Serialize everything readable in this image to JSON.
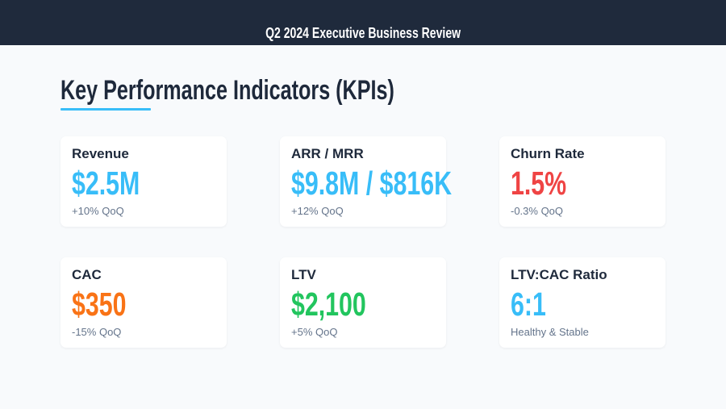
{
  "header": {
    "title": "Q2 2024 Executive Business Review"
  },
  "page": {
    "heading": "Key Performance Indicators (KPIs)",
    "accent": "#38bdf8"
  },
  "kpis": [
    {
      "label": "Revenue",
      "value": "$2.5M",
      "sub": "+10% QoQ",
      "color": "#38bdf8"
    },
    {
      "label": "ARR / MRR",
      "value": "$9.8M / $816K",
      "sub": "+12% QoQ",
      "color": "#38bdf8"
    },
    {
      "label": "Churn Rate",
      "value": "1.5%",
      "sub": "-0.3% QoQ",
      "color": "#ef4444"
    },
    {
      "label": "CAC",
      "value": "$350",
      "sub": "-15% QoQ",
      "color": "#f97316"
    },
    {
      "label": "LTV",
      "value": "$2,100",
      "sub": "+5% QoQ",
      "color": "#22c55e"
    },
    {
      "label": "LTV:CAC Ratio",
      "value": "6:1",
      "sub": "Healthy & Stable",
      "color": "#38bdf8"
    }
  ]
}
